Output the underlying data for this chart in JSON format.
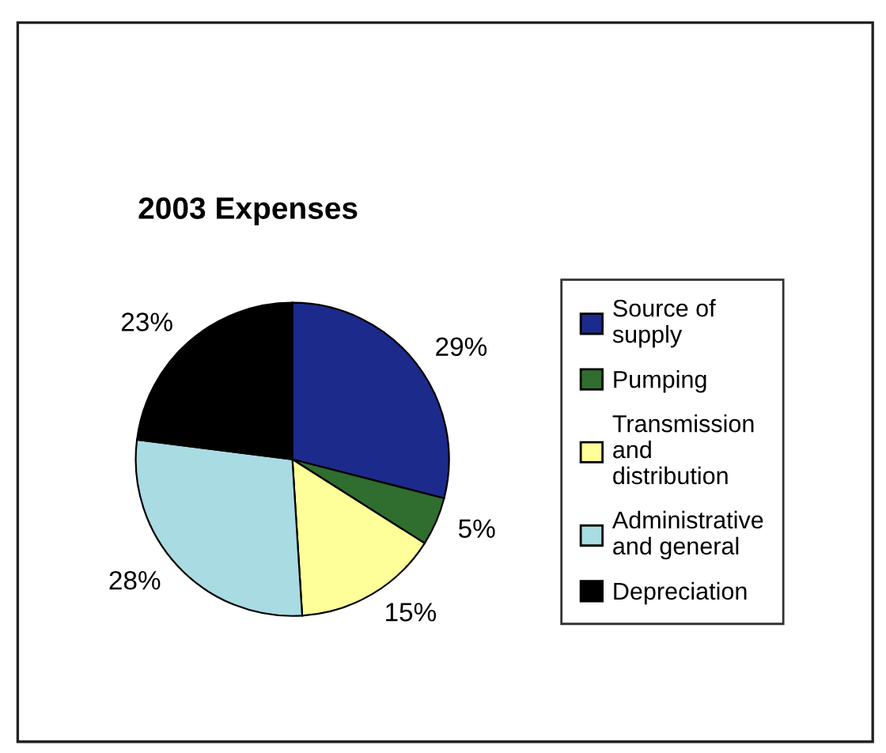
{
  "chart_data": {
    "type": "pie",
    "title": "2003 Expenses",
    "categories": [
      "Source of\nsupply",
      "Pumping",
      "Transmission\nand\ndistribution",
      "Administrative\nand general",
      "Depreciation"
    ],
    "values": [
      29,
      5,
      15,
      28,
      23
    ],
    "value_labels": [
      "29%",
      "5%",
      "15%",
      "28%",
      "23%"
    ],
    "colors": [
      "#1c2a8c",
      "#2f6e2f",
      "#ffff99",
      "#a9dbe3",
      "#000000"
    ],
    "legend": "right"
  }
}
